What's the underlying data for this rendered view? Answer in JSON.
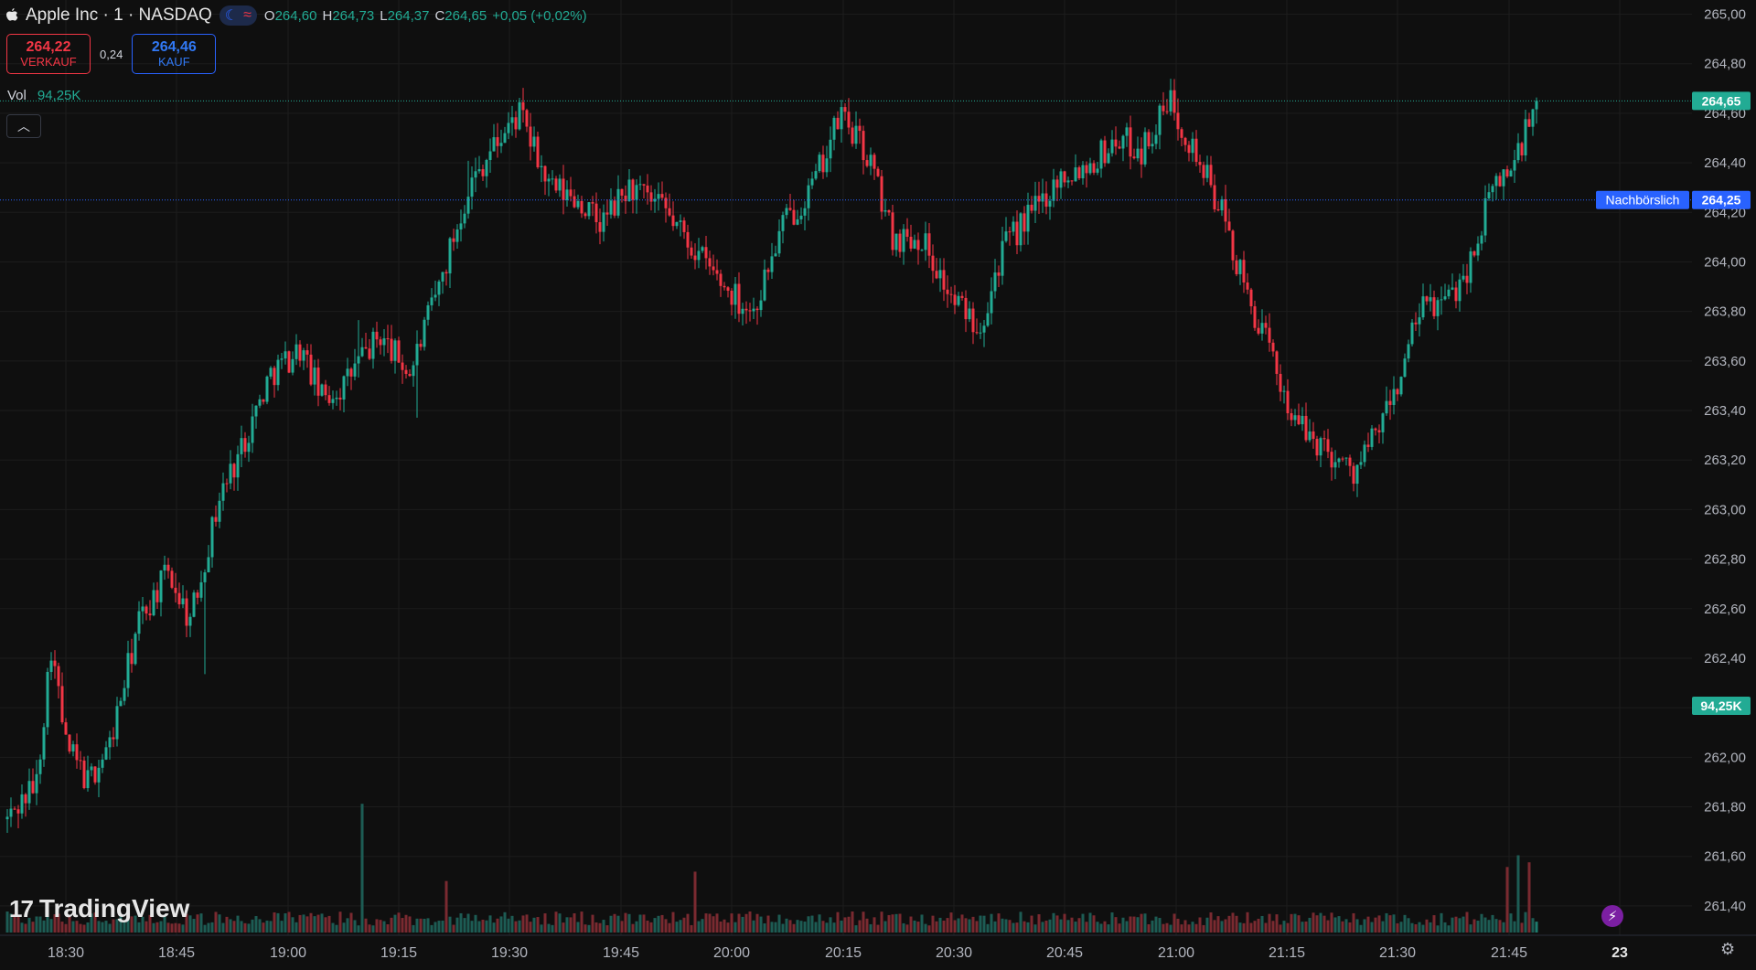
{
  "header": {
    "title": "Apple Inc · 1 · NASDAQ",
    "ohlc": [
      {
        "k": "O",
        "v": "264,60"
      },
      {
        "k": "H",
        "v": "264,73"
      },
      {
        "k": "L",
        "v": "264,37"
      },
      {
        "k": "C",
        "v": "264,65"
      }
    ],
    "change": "+0,05 (+0,02%)",
    "session_icon": "moon-icon",
    "indicator_icon": "wave-icon"
  },
  "trade": {
    "sell_price": "264,22",
    "sell_label": "VERKAUF",
    "spread": "0,24",
    "buy_price": "264,46",
    "buy_label": "KAUF"
  },
  "volume_legend": {
    "label": "Vol",
    "value": "94,25K"
  },
  "watermark": "TradingView",
  "colors": {
    "up": "#22ab94",
    "down": "#f23645",
    "background": "#0f0f0f",
    "accent": "#2962ff"
  },
  "chart_data": {
    "type": "candlestick",
    "y_axis_labels": [
      "265,00",
      "264,80",
      "264,60",
      "264,40",
      "264,20",
      "264,00",
      "263,80",
      "263,60",
      "263,40",
      "263,20",
      "263,00",
      "262,80",
      "262,60",
      "262,40",
      "262,20",
      "262,00",
      "261,80",
      "261,60",
      "261,40"
    ],
    "x_axis_labels": [
      "18:30",
      "18:45",
      "19:00",
      "19:15",
      "19:30",
      "19:45",
      "20:00",
      "20:15",
      "20:30",
      "20:45",
      "21:00",
      "21:15",
      "21:30",
      "21:45",
      "23"
    ],
    "ylim": [
      261.3,
      265.05
    ],
    "price_lines": [
      {
        "label": "",
        "value": 264.65,
        "text": "264,65",
        "color": "#22ab94",
        "style": "dotted"
      },
      {
        "label": "Nachbörslich",
        "value": 264.25,
        "text": "264,25",
        "color": "#2962ff",
        "style": "dotted"
      }
    ],
    "volume_badge": "94,25K",
    "candles": [],
    "anchors": [
      [
        0,
        261.75
      ],
      [
        8,
        261.9
      ],
      [
        12,
        262.45
      ],
      [
        16,
        262.05
      ],
      [
        22,
        261.9
      ],
      [
        28,
        262.05
      ],
      [
        36,
        262.55
      ],
      [
        44,
        262.75
      ],
      [
        50,
        262.55
      ],
      [
        58,
        263.05
      ],
      [
        64,
        263.25
      ],
      [
        72,
        263.55
      ],
      [
        80,
        263.65
      ],
      [
        86,
        263.45
      ],
      [
        92,
        263.5
      ],
      [
        96,
        263.6
      ],
      [
        102,
        263.7
      ],
      [
        110,
        263.55
      ],
      [
        118,
        263.9
      ],
      [
        126,
        264.3
      ],
      [
        132,
        264.45
      ],
      [
        140,
        264.6
      ],
      [
        148,
        264.3
      ],
      [
        156,
        264.25
      ],
      [
        162,
        264.15
      ],
      [
        170,
        264.3
      ],
      [
        180,
        264.2
      ],
      [
        188,
        264.05
      ],
      [
        196,
        263.9
      ],
      [
        204,
        263.8
      ],
      [
        212,
        264.15
      ],
      [
        220,
        264.3
      ],
      [
        228,
        264.6
      ],
      [
        236,
        264.4
      ],
      [
        242,
        264.1
      ],
      [
        250,
        264.1
      ],
      [
        258,
        263.85
      ],
      [
        266,
        263.75
      ],
      [
        272,
        264.05
      ],
      [
        280,
        264.2
      ],
      [
        288,
        264.35
      ],
      [
        296,
        264.4
      ],
      [
        304,
        264.5
      ],
      [
        310,
        264.45
      ],
      [
        318,
        264.65
      ],
      [
        326,
        264.4
      ],
      [
        332,
        264.2
      ],
      [
        338,
        263.9
      ],
      [
        346,
        263.6
      ],
      [
        352,
        263.35
      ],
      [
        360,
        263.25
      ],
      [
        368,
        263.15
      ],
      [
        374,
        263.3
      ],
      [
        380,
        263.5
      ],
      [
        386,
        263.8
      ],
      [
        394,
        263.85
      ],
      [
        400,
        264.0
      ],
      [
        406,
        264.3
      ],
      [
        412,
        264.4
      ],
      [
        418,
        264.65
      ]
    ],
    "volume_spikes": [
      [
        97,
        0.55
      ],
      [
        120,
        0.22
      ],
      [
        188,
        0.26
      ],
      [
        410,
        0.28
      ],
      [
        413,
        0.33
      ],
      [
        416,
        0.3
      ],
      [
        419,
        1.0
      ]
    ]
  }
}
